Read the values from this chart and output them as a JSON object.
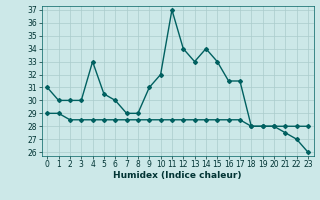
{
  "xlabel": "Humidex (Indice chaleur)",
  "background_color": "#cce8e8",
  "line_color": "#006060",
  "grid_color": "#aacccc",
  "x_values": [
    0,
    1,
    2,
    3,
    4,
    5,
    6,
    7,
    8,
    9,
    10,
    11,
    12,
    13,
    14,
    15,
    16,
    17,
    18,
    19,
    20,
    21,
    22,
    23
  ],
  "y_main": [
    31,
    30,
    30,
    30,
    33,
    30.5,
    30,
    29,
    29,
    31,
    32,
    37,
    34,
    33,
    34,
    33,
    31.5,
    31.5,
    28,
    28,
    28,
    27.5,
    27,
    26
  ],
  "y_flat": [
    29,
    29,
    28.5,
    28.5,
    28.5,
    28.5,
    28.5,
    28.5,
    28.5,
    28.5,
    28.5,
    28.5,
    28.5,
    28.5,
    28.5,
    28.5,
    28.5,
    28.5,
    28,
    28,
    28,
    28,
    28,
    28
  ],
  "ylim_min": 26,
  "ylim_max": 37,
  "xlim_min": -0.5,
  "xlim_max": 23.5,
  "yticks": [
    26,
    27,
    28,
    29,
    30,
    31,
    32,
    33,
    34,
    35,
    36,
    37
  ],
  "xticks": [
    0,
    1,
    2,
    3,
    4,
    5,
    6,
    7,
    8,
    9,
    10,
    11,
    12,
    13,
    14,
    15,
    16,
    17,
    18,
    19,
    20,
    21,
    22,
    23
  ],
  "marker": "D",
  "marker_size": 2.0,
  "line_width": 1.0,
  "tick_fontsize": 5.5,
  "xlabel_fontsize": 6.5
}
